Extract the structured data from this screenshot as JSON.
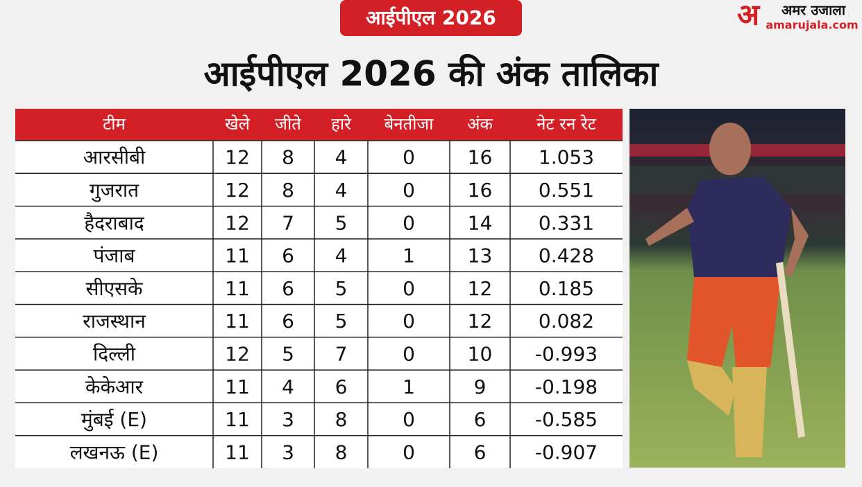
{
  "header": {
    "badge": "आईपीएल 2026",
    "title": "आईपीएल 2026 की अंक तालिका",
    "logo_mark": "अ",
    "logo_name": "अमर उजाला",
    "logo_site": "amarujala.com"
  },
  "table": {
    "columns": [
      "टीम",
      "खेले",
      "जीते",
      "हारे",
      "बेनतीजा",
      "अंक",
      "नेट रन रेट"
    ],
    "rows": [
      [
        "आरसीबी",
        "12",
        "8",
        "4",
        "0",
        "16",
        "1.053"
      ],
      [
        "गुजरात",
        "12",
        "8",
        "4",
        "0",
        "16",
        "0.551"
      ],
      [
        "हैदराबाद",
        "12",
        "7",
        "5",
        "0",
        "14",
        "0.331"
      ],
      [
        "पंजाब",
        "11",
        "6",
        "4",
        "1",
        "13",
        "0.428"
      ],
      [
        "सीएसके",
        "11",
        "6",
        "5",
        "0",
        "12",
        "0.185"
      ],
      [
        "राजस्थान",
        "11",
        "6",
        "5",
        "0",
        "12",
        "0.082"
      ],
      [
        "दिल्ली",
        "12",
        "5",
        "7",
        "0",
        "10",
        "-0.993"
      ],
      [
        "केकेआर",
        "11",
        "4",
        "6",
        "1",
        "9",
        "-0.198"
      ],
      [
        "मुंबई (E)",
        "11",
        "3",
        "8",
        "0",
        "6",
        "-0.585"
      ],
      [
        "लखनऊ (E)",
        "11",
        "3",
        "8",
        "0",
        "6",
        "-0.907"
      ]
    ]
  }
}
